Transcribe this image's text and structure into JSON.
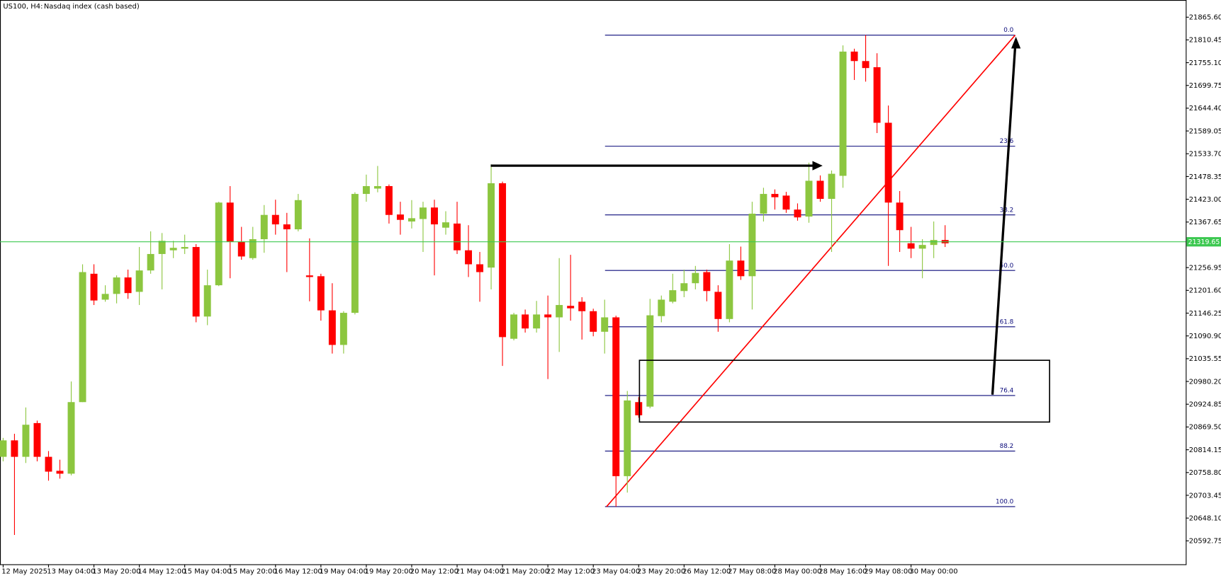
{
  "chart_data": {
    "type": "candlestick",
    "symbol": "US100, H4:",
    "description": "Nasdaq index (cash based)",
    "up_color": "#8cc63f",
    "down_color": "#ff0000",
    "categories": [
      "12 May 2025",
      null,
      null,
      null,
      "13 May 04:00",
      null,
      null,
      null,
      "13 May 20:00",
      null,
      null,
      null,
      "14 May 12:00",
      null,
      null,
      null,
      "15 May 04:00",
      null,
      null,
      null,
      "15 May 20:00",
      null,
      null,
      null,
      "16 May 12:00",
      null,
      null,
      null,
      "19 May 04:00",
      null,
      null,
      null,
      "19 May 20:00",
      null,
      null,
      null,
      "20 May 12:00",
      null,
      null,
      null,
      "21 May 04:00",
      null,
      null,
      null,
      "21 May 20:00",
      null,
      null,
      null,
      "22 May 12:00",
      null,
      null,
      null,
      "23 May 04:00",
      null,
      null,
      null,
      "23 May 20:00",
      null,
      null,
      null,
      "26 May 12:00",
      null,
      null,
      null,
      "27 May 08:00",
      null,
      null,
      null,
      "28 May 00:00",
      null,
      null,
      null,
      "28 May 16:00",
      null,
      null,
      null,
      "29 May 08:00",
      null,
      null,
      null,
      "30 May 00:00",
      null,
      null,
      null
    ],
    "open": [
      20797,
      20837,
      20797,
      20879,
      20797,
      20763,
      20756,
      20930,
      21242,
      21179,
      21193,
      21233,
      21198,
      21250,
      21290,
      21299,
      21303,
      21307,
      21138,
      21214,
      21415,
      21320,
      21280,
      21326,
      21385,
      21362,
      21350,
      21238,
      21236,
      21153,
      21069,
      21147,
      21436,
      21449,
      21455,
      21386,
      21369,
      21375,
      21403,
      21354,
      21364,
      21299,
      21265,
      21257,
      21462,
      21084,
      21143,
      21109,
      21143,
      21136,
      21164,
      21174,
      21151,
      21101,
      21136,
      20750,
      20930,
      20919,
      21139,
      21174,
      21200,
      21219,
      21246,
      21198,
      21132,
      21274,
      21236,
      21388,
      21436,
      21432,
      21398,
      21381,
      21468,
      21424,
      21480,
      21782,
      21759,
      21744,
      21609,
      21415,
      21316,
      21303,
      21312,
      21324
    ],
    "high": [
      20843,
      20853,
      20917,
      20885,
      20811,
      20790,
      20980,
      21265,
      21265,
      21214,
      21238,
      21252,
      21307,
      21345,
      21341,
      21322,
      21337,
      21314,
      21252,
      21417,
      21455,
      21356,
      21356,
      21409,
      21422,
      21390,
      21436,
      21328,
      21242,
      21219,
      21151,
      21440,
      21483,
      21504,
      21459,
      21417,
      21421,
      21417,
      21422,
      21394,
      21417,
      21360,
      21295,
      21508,
      21466,
      21147,
      21155,
      21176,
      21189,
      21280,
      21288,
      21185,
      21157,
      21179,
      21140,
      20957,
      20942,
      21181,
      21189,
      21242,
      21252,
      21261,
      21252,
      21214,
      21314,
      21308,
      21417,
      21451,
      21447,
      21441,
      21413,
      21512,
      21481,
      21493,
      21797,
      21789,
      21822,
      21778,
      21651,
      21443,
      21356,
      21326,
      21369,
      21360
    ],
    "low": [
      20786,
      20607,
      20782,
      20786,
      20739,
      20744,
      20752,
      20930,
      21166,
      21174,
      21170,
      21181,
      21166,
      21242,
      21204,
      21280,
      21290,
      21124,
      21117,
      21212,
      21231,
      21276,
      21276,
      21293,
      21337,
      21246,
      21345,
      21175,
      21128,
      21048,
      21048,
      21143,
      21417,
      21440,
      21364,
      21337,
      21352,
      21295,
      21238,
      21337,
      21290,
      21234,
      21174,
      21204,
      21018,
      21080,
      21099,
      21099,
      20986,
      21052,
      21128,
      21082,
      21090,
      21048,
      20676,
      20710,
      20892,
      20915,
      21124,
      21170,
      21185,
      21204,
      21175,
      21101,
      21124,
      21227,
      21155,
      21369,
      21398,
      21390,
      21371,
      21366,
      21417,
      21295,
      21451,
      21713,
      21709,
      21584,
      21261,
      21295,
      21280,
      21231,
      21280,
      21307
    ],
    "close": [
      20837,
      20797,
      20875,
      20797,
      20761,
      20756,
      20930,
      21246,
      21177,
      21193,
      21233,
      21195,
      21250,
      21290,
      21322,
      21305,
      21307,
      21138,
      21214,
      21415,
      21320,
      21284,
      21326,
      21385,
      21362,
      21350,
      21421,
      21234,
      21153,
      21069,
      21147,
      21436,
      21455,
      21455,
      21385,
      21373,
      21377,
      21403,
      21362,
      21367,
      21299,
      21265,
      21246,
      21462,
      21088,
      21143,
      21109,
      21143,
      21136,
      21166,
      21158,
      21151,
      21101,
      21136,
      20750,
      20934,
      20898,
      21141,
      21179,
      21202,
      21219,
      21244,
      21200,
      21132,
      21274,
      21236,
      21388,
      21436,
      21428,
      21398,
      21379,
      21468,
      21424,
      21485,
      21782,
      21759,
      21742,
      21609,
      21415,
      21348,
      21303,
      21312,
      21324,
      21316
    ],
    "ylim": [
      20535.8,
      21907.4
    ],
    "yticks": [
      {
        "value": 21865.6,
        "label": "21865.60"
      },
      21810.45,
      {
        "value": 21755.1,
        "label": "21755.10"
      },
      21699.75,
      {
        "value": 21644.4,
        "label": "21644.40"
      },
      21589.05,
      {
        "value": 21533.7,
        "label": "21533.70"
      },
      21478.35,
      {
        "value": 21423,
        "label": "21423.00"
      },
      21367.65,
      21256.95,
      {
        "value": 21201.6,
        "label": "21201.60"
      },
      21146.25,
      {
        "value": 21090.9,
        "label": "21090.90"
      },
      21035.55,
      {
        "value": 20980.2,
        "label": "20980.20"
      },
      20924.85,
      {
        "value": 20869.5,
        "label": "20869.50"
      },
      20814.15,
      {
        "value": 20758.8,
        "label": "20758.80"
      },
      20703.45,
      {
        "value": 20648.1,
        "label": "20648.10"
      },
      20592.75
    ],
    "current_price": 21319.65,
    "current_price_color": "#3cc850",
    "fibonacci": {
      "color": "#0a0a7a",
      "trend_color": "#ff0000",
      "levels": [
        {
          "label": "0.0",
          "value": 21822
        },
        {
          "label": "23.6",
          "value": 21552
        },
        {
          "label": "38.2",
          "value": 21385
        },
        {
          "label": "50.0",
          "value": 21250
        },
        {
          "label": "61.8",
          "value": 21113
        },
        {
          "label": "76.4",
          "value": 20946
        },
        {
          "label": "88.2",
          "value": 20811
        },
        {
          "label": "100.0",
          "value": 20676
        }
      ]
    }
  }
}
